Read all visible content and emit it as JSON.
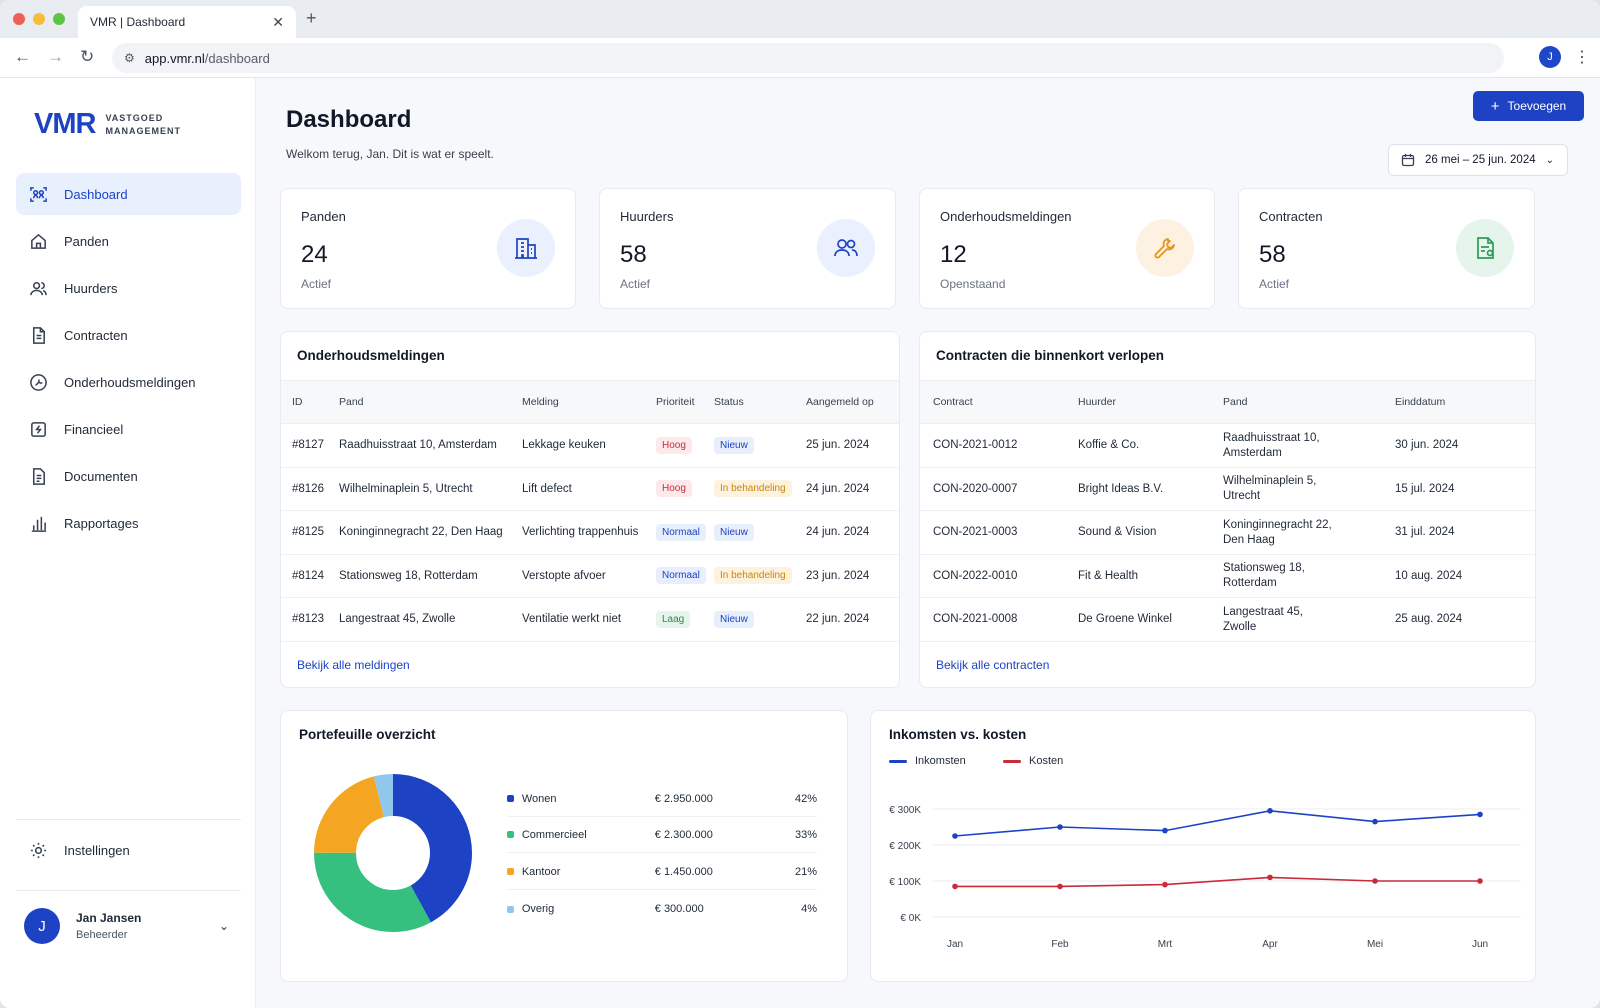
{
  "browser": {
    "tab_title": "VMR | Dashboard",
    "url_host": "app.vmr.nl",
    "url_path": "/dashboard",
    "profile_initial": "J"
  },
  "sidebar": {
    "logo_mark": "VMR",
    "logo_line1": "VASTGOED",
    "logo_line2": "MANAGEMENT",
    "items": [
      {
        "label": "Dashboard",
        "icon": "dashboard-icon"
      },
      {
        "label": "Panden",
        "icon": "home-icon"
      },
      {
        "label": "Huurders",
        "icon": "users-icon"
      },
      {
        "label": "Contracten",
        "icon": "document-icon"
      },
      {
        "label": "Onderhoudsmeldingen",
        "icon": "tool-circle-icon"
      },
      {
        "label": "Financieel",
        "icon": "finance-icon"
      },
      {
        "label": "Documenten",
        "icon": "file-icon"
      },
      {
        "label": "Rapportages",
        "icon": "bar-chart-icon"
      }
    ],
    "settings_label": "Instellingen",
    "user": {
      "initial": "J",
      "name": "Jan Jansen",
      "role": "Beheerder"
    }
  },
  "header": {
    "title": "Dashboard",
    "subtitle": "Welkom terug, Jan. Dit is wat er speelt.",
    "add_button": "Toevoegen",
    "date_range": "26 mei – 25 jun. 2024"
  },
  "stats": [
    {
      "label": "Panden",
      "value": "24",
      "sub": "Actief",
      "icon": "building-icon",
      "icon_color": "#1d43c4",
      "bg": "#eaf0fd"
    },
    {
      "label": "Huurders",
      "value": "58",
      "sub": "Actief",
      "icon": "users-icon",
      "icon_color": "#1d43c4",
      "bg": "#eaf0fd"
    },
    {
      "label": "Onderhoudsmeldingen",
      "value": "12",
      "sub": "Openstaand",
      "icon": "wrench-icon",
      "icon_color": "#e8941b",
      "bg": "#fdf1e2"
    },
    {
      "label": "Contracten",
      "value": "58",
      "sub": "Actief",
      "icon": "contract-icon",
      "icon_color": "#2f9a5a",
      "bg": "#e6f5ec"
    }
  ],
  "maintenance": {
    "title": "Onderhoudsmeldingen",
    "columns": [
      "ID",
      "Pand",
      "Melding",
      "Prioriteit",
      "Status",
      "Aangemeld op"
    ],
    "rows": [
      {
        "id": "#8127",
        "pand": "Raadhuisstraat 10, Amsterdam",
        "melding": "Lekkage keuken",
        "prioriteit": "Hoog",
        "status": "Nieuw",
        "datum": "25 jun. 2024"
      },
      {
        "id": "#8126",
        "pand": "Wilhelminaplein 5, Utrecht",
        "melding": "Lift defect",
        "prioriteit": "Hoog",
        "status": "In behandeling",
        "datum": "24 jun. 2024"
      },
      {
        "id": "#8125",
        "pand": "Koninginnegracht 22, Den Haag",
        "melding": "Verlichting trappenhuis",
        "prioriteit": "Normaal",
        "status": "Nieuw",
        "datum": "24 jun. 2024"
      },
      {
        "id": "#8124",
        "pand": "Stationsweg 18, Rotterdam",
        "melding": "Verstopte afvoer",
        "prioriteit": "Normaal",
        "status": "In behandeling",
        "datum": "23 jun. 2024"
      },
      {
        "id": "#8123",
        "pand": "Langestraat 45, Zwolle",
        "melding": "Ventilatie werkt niet",
        "prioriteit": "Laag",
        "status": "Nieuw",
        "datum": "22 jun. 2024"
      }
    ],
    "link": "Bekijk alle meldingen"
  },
  "contracts": {
    "title": "Contracten die binnenkort verlopen",
    "columns": [
      "Contract",
      "Huurder",
      "Pand",
      "Einddatum"
    ],
    "rows": [
      {
        "contract": "CON-2021-0012",
        "huurder": "Koffie & Co.",
        "pand1": "Raadhuisstraat 10,",
        "pand2": "Amsterdam",
        "einddatum": "30 jun. 2024"
      },
      {
        "contract": "CON-2020-0007",
        "huurder": "Bright Ideas B.V.",
        "pand1": "Wilhelminaplein 5,",
        "pand2": "Utrecht",
        "einddatum": "15 jul. 2024"
      },
      {
        "contract": "CON-2021-0003",
        "huurder": "Sound & Vision",
        "pand1": "Koninginnegracht 22,",
        "pand2": "Den Haag",
        "einddatum": "31 jul. 2024"
      },
      {
        "contract": "CON-2022-0010",
        "huurder": "Fit & Health",
        "pand1": "Stationsweg 18,",
        "pand2": "Rotterdam",
        "einddatum": "10 aug. 2024"
      },
      {
        "contract": "CON-2021-0008",
        "huurder": "De Groene Winkel",
        "pand1": "Langestraat 45,",
        "pand2": "Zwolle",
        "einddatum": "25 aug. 2024"
      }
    ],
    "link": "Bekijk alle contracten"
  },
  "portfolio": {
    "title": "Portefeuille overzicht",
    "items": [
      {
        "name": "Wonen",
        "amount": "€ 2.950.000",
        "pct": "42%",
        "color": "#1d43c4"
      },
      {
        "name": "Commercieel",
        "amount": "€ 2.300.000",
        "pct": "33%",
        "color": "#35c07f"
      },
      {
        "name": "Kantoor",
        "amount": "€ 1.450.000",
        "pct": "21%",
        "color": "#f4a623"
      },
      {
        "name": "Overig",
        "amount": "€ 300.000",
        "pct": "4%",
        "color": "#8fc8ec"
      }
    ]
  },
  "chart_data": [
    {
      "type": "pie",
      "title": "Portefeuille overzicht",
      "categories": [
        "Wonen",
        "Commercieel",
        "Kantoor",
        "Overig"
      ],
      "values": [
        42,
        33,
        21,
        4
      ],
      "colors": [
        "#1d43c4",
        "#35c07f",
        "#f4a623",
        "#8fc8ec"
      ],
      "donut": true
    },
    {
      "type": "line",
      "title": "Inkomsten vs. kosten",
      "x": [
        "Jan",
        "Feb",
        "Mrt",
        "Apr",
        "Mei",
        "Jun"
      ],
      "series": [
        {
          "name": "Inkomsten",
          "values": [
            225,
            250,
            240,
            295,
            265,
            285
          ],
          "color": "#1d43c4"
        },
        {
          "name": "Kosten",
          "values": [
            85,
            85,
            90,
            110,
            100,
            100
          ],
          "color": "#c92b3b"
        }
      ],
      "yticks": [
        "€ 0K",
        "€ 100K",
        "€ 200K",
        "€ 300K"
      ],
      "ylim": [
        0,
        300
      ],
      "ylabel_unit": "€ K",
      "grid": true,
      "legend": "top-left"
    }
  ]
}
